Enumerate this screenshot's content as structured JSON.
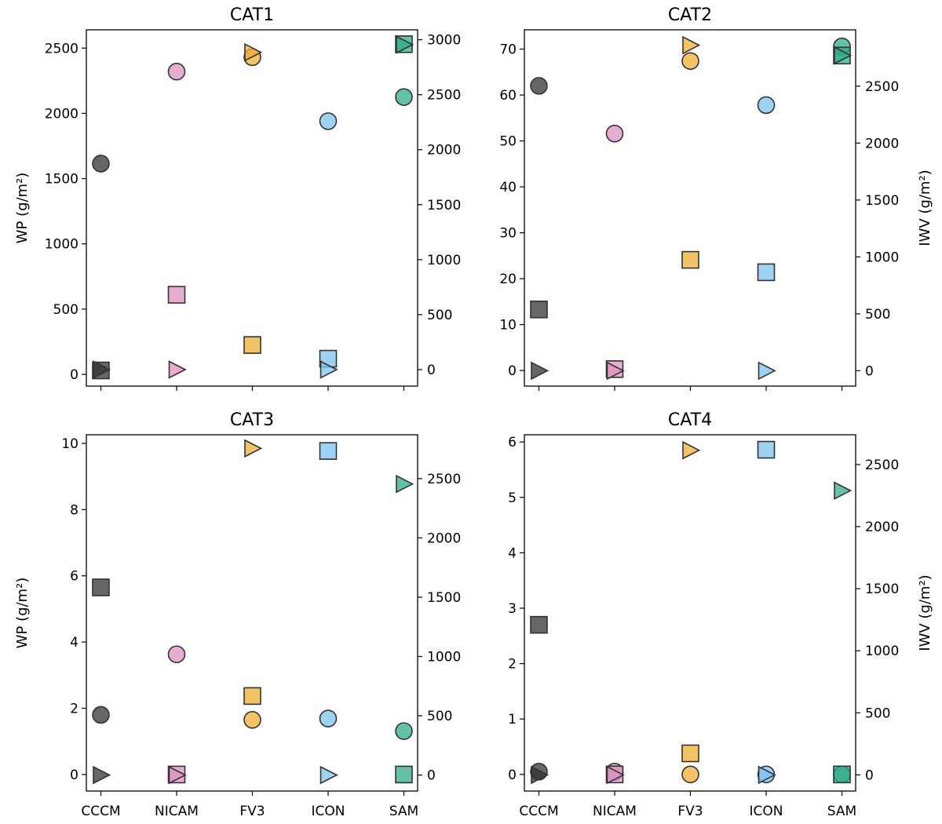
{
  "chart_data": [
    {
      "type": "scatter",
      "title": "CAT1",
      "categories": [
        "CCCM",
        "NICAM",
        "FV3",
        "ICON",
        "SAM"
      ],
      "ylabel_left": "WP (g/m²)",
      "ylabel_right": "",
      "ylim_left": [
        -90,
        2640
      ],
      "ylim_right": [
        -150,
        3090
      ],
      "yticks_left": [
        0,
        500,
        1000,
        1500,
        2000,
        2500
      ],
      "yticks_right": [
        0,
        500,
        1000,
        1500,
        2000,
        2500,
        3000
      ],
      "show_xticklabels": false,
      "series": [
        {
          "name": "",
          "marker": "circle",
          "axis": "left",
          "values": [
            1615,
            2320,
            2430,
            1940,
            2125
          ]
        },
        {
          "name": "",
          "marker": "square",
          "axis": "left",
          "values": [
            30,
            610,
            225,
            120,
            2530
          ]
        },
        {
          "name": "",
          "marker": "triangle-right",
          "axis": "right",
          "values": [
            0,
            0,
            2885,
            0,
            2955
          ]
        }
      ]
    },
    {
      "type": "scatter",
      "title": "CAT2",
      "categories": [
        "CCCM",
        "NICAM",
        "FV3",
        "ICON",
        "SAM"
      ],
      "ylabel_left": "",
      "ylabel_right": "IWV (g/m²)",
      "ylim_left": [
        -3.4,
        74.2
      ],
      "ylim_right": [
        -135,
        2995
      ],
      "yticks_left": [
        0,
        10,
        20,
        30,
        40,
        50,
        60,
        70
      ],
      "yticks_right": [
        0,
        500,
        1000,
        1500,
        2000,
        2500
      ],
      "show_xticklabels": false,
      "series": [
        {
          "name": "",
          "marker": "circle",
          "axis": "left",
          "values": [
            62,
            51.6,
            67.4,
            57.8,
            70.6
          ]
        },
        {
          "name": "",
          "marker": "square",
          "axis": "left",
          "values": [
            13.3,
            0.3,
            24.1,
            21.4,
            68.6
          ]
        },
        {
          "name": "",
          "marker": "triangle-right",
          "axis": "right",
          "values": [
            0,
            0,
            2860,
            0,
            2770
          ]
        }
      ]
    },
    {
      "type": "scatter",
      "title": "CAT3",
      "categories": [
        "CCCM",
        "NICAM",
        "FV3",
        "ICON",
        "SAM"
      ],
      "ylabel_left": "WP (g/m²)",
      "ylabel_right": "",
      "ylim_left": [
        -0.5,
        10.26
      ],
      "ylim_right": [
        -135,
        2870
      ],
      "yticks_left": [
        0,
        2,
        4,
        6,
        8,
        10
      ],
      "yticks_right": [
        0,
        500,
        1000,
        1500,
        2000,
        2500
      ],
      "show_xticklabels": true,
      "series": [
        {
          "name": "",
          "marker": "circle",
          "axis": "left",
          "values": [
            1.8,
            3.63,
            1.65,
            1.69,
            1.31
          ]
        },
        {
          "name": "",
          "marker": "square",
          "axis": "left",
          "values": [
            5.65,
            0,
            2.37,
            9.77,
            0
          ]
        },
        {
          "name": "",
          "marker": "triangle-right",
          "axis": "right",
          "values": [
            0,
            0,
            2755,
            0,
            2455
          ]
        }
      ]
    },
    {
      "type": "scatter",
      "title": "CAT4",
      "categories": [
        "CCCM",
        "NICAM",
        "FV3",
        "ICON",
        "SAM"
      ],
      "ylabel_left": "",
      "ylabel_right": "IWV (g/m²)",
      "ylim_left": [
        -0.3,
        6.13
      ],
      "ylim_right": [
        -130,
        2740
      ],
      "yticks_left": [
        0,
        1,
        2,
        3,
        4,
        5,
        6
      ],
      "yticks_right": [
        0,
        500,
        1000,
        1500,
        2000,
        2500
      ],
      "show_xticklabels": true,
      "series": [
        {
          "name": "",
          "marker": "circle",
          "axis": "left",
          "values": [
            0.05,
            0.05,
            0,
            0,
            0
          ]
        },
        {
          "name": "",
          "marker": "square",
          "axis": "left",
          "values": [
            2.7,
            0,
            0.38,
            5.86,
            0
          ]
        },
        {
          "name": "",
          "marker": "triangle-right",
          "axis": "right",
          "values": [
            0,
            0,
            2615,
            0,
            2290
          ]
        }
      ]
    }
  ],
  "colors": {
    "models": [
      "#333333",
      "#dd92c2",
      "#efaf36",
      "#7cc3ef",
      "#30ab88"
    ],
    "edge": "#333333"
  }
}
